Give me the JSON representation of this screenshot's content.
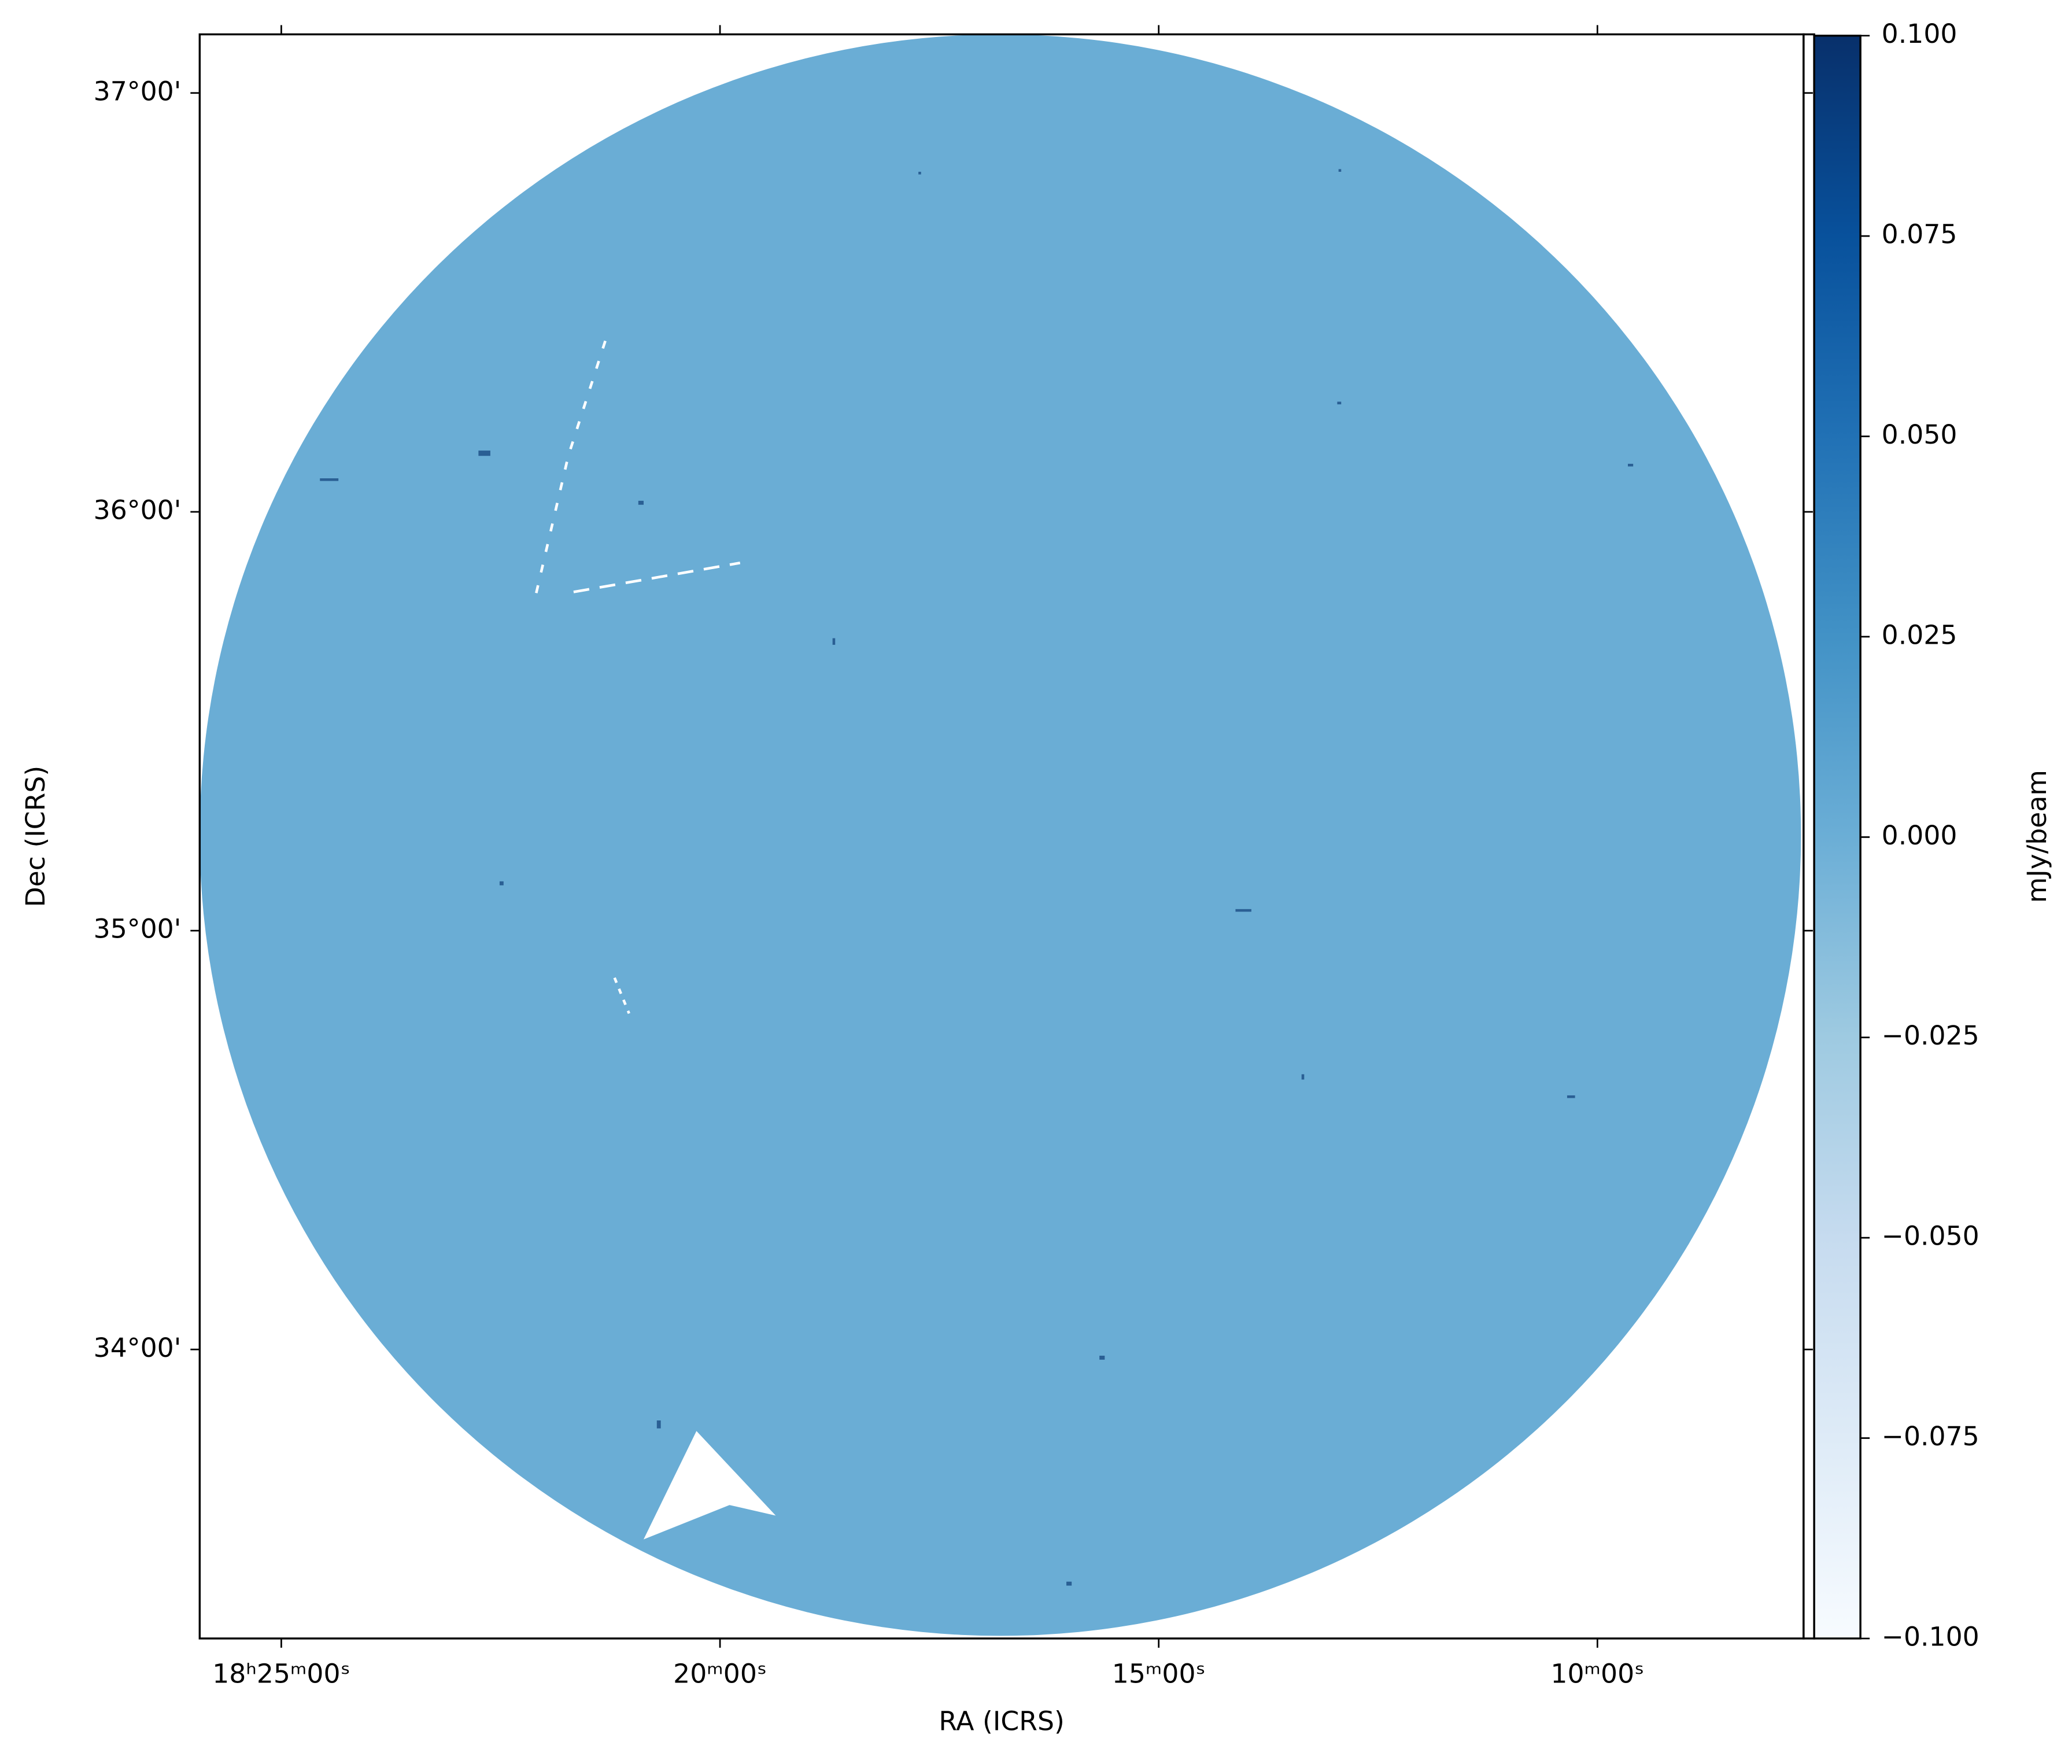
{
  "chart_data": {
    "type": "sky-image",
    "xlabel": "RA (ICRS)",
    "ylabel": "Dec (ICRS)",
    "xlim": [
      25.93,
      7.65
    ],
    "xticks": [
      {
        "value": 25,
        "label": "18ʰ25ᵐ00ˢ"
      },
      {
        "value": 20,
        "label": "20ᵐ00ˢ"
      },
      {
        "value": 15,
        "label": "15ᵐ00ˢ"
      },
      {
        "value": 10,
        "label": "10ᵐ00ˢ"
      }
    ],
    "ylim": [
      33.31,
      37.14
    ],
    "yticks": [
      {
        "value": 34,
        "label": "34°00'"
      },
      {
        "value": 35,
        "label": "35°00'"
      },
      {
        "value": 36,
        "label": "36°00'"
      },
      {
        "value": 37,
        "label": "37°00'"
      }
    ],
    "image_color": "#6aadd5",
    "colorbar": {
      "label": "mJy/beam",
      "lim": [
        -0.1,
        0.1
      ],
      "ticks": [
        {
          "value": -0.1,
          "label": "−0.100"
        },
        {
          "value": -0.075,
          "label": "−0.075"
        },
        {
          "value": -0.05,
          "label": "−0.050"
        },
        {
          "value": -0.025,
          "label": "−0.025"
        },
        {
          "value": 0,
          "label": "0.000"
        },
        {
          "value": 0.025,
          "label": "0.025"
        },
        {
          "value": 0.05,
          "label": "0.050"
        },
        {
          "value": 0.075,
          "label": "0.075"
        },
        {
          "value": 0.1,
          "label": "0.100"
        }
      ],
      "colormap": [
        "#f7fbff",
        "#deebf7",
        "#c6dbef",
        "#9ecae1",
        "#6baed6",
        "#4292c6",
        "#2171b5",
        "#08519c",
        "#08306b"
      ]
    }
  }
}
